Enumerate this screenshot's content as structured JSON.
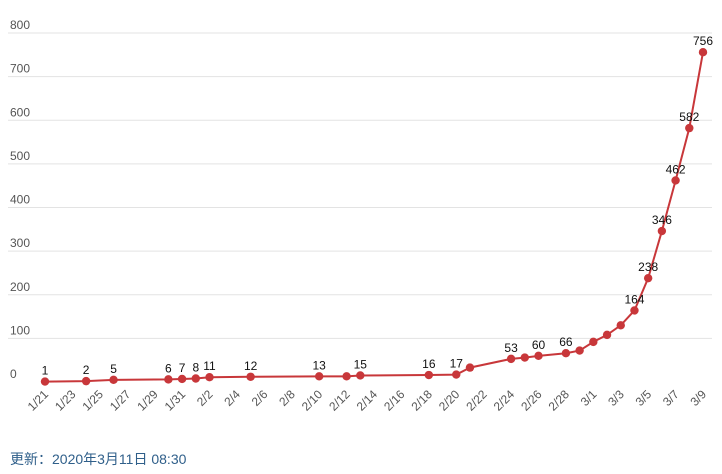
{
  "footer": {
    "updated": "更新：2020年3月11日 08:30"
  },
  "colors": {
    "series": "#c8373a",
    "grid": "#e3e3e3"
  },
  "chart_data": {
    "type": "line",
    "title": "",
    "xlabel": "",
    "ylabel": "",
    "ylim": [
      0,
      800
    ],
    "yticks": [
      0,
      100,
      200,
      300,
      400,
      500,
      600,
      700,
      800
    ],
    "grid": true,
    "legend": "none",
    "xtick_labels": [
      "1/21",
      "1/23",
      "1/25",
      "1/27",
      "1/29",
      "1/31",
      "2/2",
      "2/4",
      "2/6",
      "2/8",
      "2/10",
      "2/12",
      "2/14",
      "2/16",
      "2/18",
      "2/20",
      "2/22",
      "2/24",
      "2/26",
      "2/28",
      "3/1",
      "3/3",
      "3/5",
      "3/7",
      "3/9"
    ],
    "series": [
      {
        "color": "#c8373a",
        "points": [
          {
            "x": "1/21",
            "y": 1,
            "label": "1"
          },
          {
            "x": "1/24",
            "y": 2,
            "label": "2"
          },
          {
            "x": "1/26",
            "y": 5,
            "label": "5"
          },
          {
            "x": "1/30",
            "y": 6,
            "label": "6"
          },
          {
            "x": "1/31",
            "y": 7,
            "label": "7"
          },
          {
            "x": "2/1",
            "y": 8,
            "label": "8"
          },
          {
            "x": "2/2",
            "y": 11,
            "label": "11"
          },
          {
            "x": "2/5",
            "y": 12,
            "label": "12"
          },
          {
            "x": "2/10",
            "y": 13,
            "label": "13"
          },
          {
            "x": "2/12",
            "y": 13
          },
          {
            "x": "2/13",
            "y": 15,
            "label": "15"
          },
          {
            "x": "2/18",
            "y": 16,
            "label": "16"
          },
          {
            "x": "2/20",
            "y": 17,
            "label": "17"
          },
          {
            "x": "2/21",
            "y": 33
          },
          {
            "x": "2/24",
            "y": 53,
            "label": "53"
          },
          {
            "x": "2/25",
            "y": 56
          },
          {
            "x": "2/26",
            "y": 60,
            "label": "60"
          },
          {
            "x": "2/28",
            "y": 66,
            "label": "66"
          },
          {
            "x": "2/29",
            "y": 72
          },
          {
            "x": "3/1",
            "y": 92
          },
          {
            "x": "3/2",
            "y": 108
          },
          {
            "x": "3/3",
            "y": 130
          },
          {
            "x": "3/4",
            "y": 164,
            "label": "164"
          },
          {
            "x": "3/5",
            "y": 238,
            "label": "238"
          },
          {
            "x": "3/6",
            "y": 346,
            "label": "346"
          },
          {
            "x": "3/7",
            "y": 462,
            "label": "462"
          },
          {
            "x": "3/8",
            "y": 582,
            "label": "582"
          },
          {
            "x": "3/9",
            "y": 756,
            "label": "756"
          }
        ]
      }
    ]
  }
}
